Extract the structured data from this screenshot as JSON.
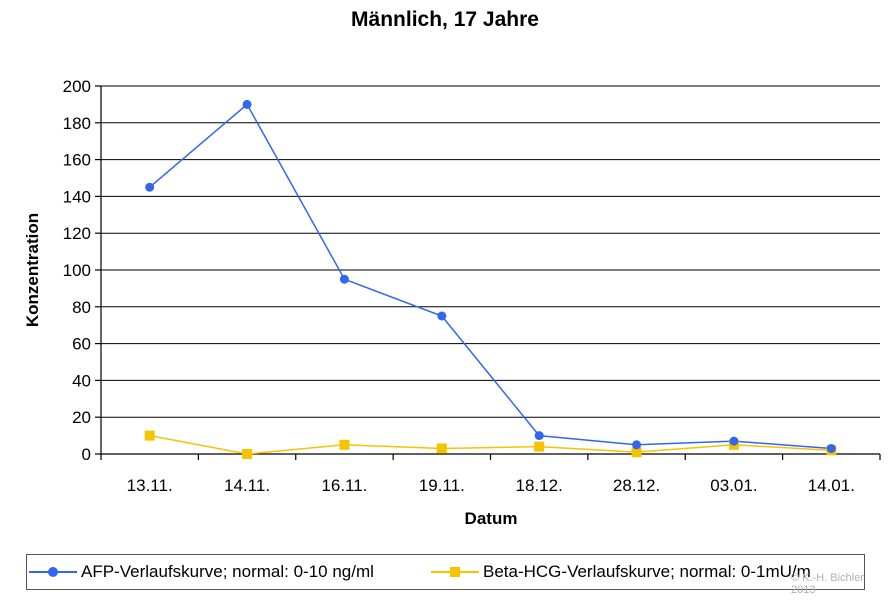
{
  "chart_data": {
    "type": "line",
    "title": "Männlich, 17 Jahre",
    "xlabel": "Datum",
    "ylabel": "Konzentration",
    "categories": [
      "13.11.",
      "14.11.",
      "16.11.",
      "19.11.",
      "18.12.",
      "28.12.",
      "03.01.",
      "14.01."
    ],
    "ylim": [
      0,
      200
    ],
    "yticks": [
      0,
      20,
      40,
      60,
      80,
      100,
      120,
      140,
      160,
      180,
      200
    ],
    "grid": true,
    "legend_position": "bottom",
    "series": [
      {
        "name": "AFP-Verlaufskurve; normal: 0-10 ng/ml",
        "marker": "circle",
        "color": "#3366ee",
        "values": [
          145,
          190,
          95,
          75,
          10,
          5,
          7,
          3
        ]
      },
      {
        "name": "Beta-HCG-Verlaufskurve; normal: 0-1mU/m",
        "marker": "square",
        "color": "#f5c400",
        "values": [
          10,
          0,
          5,
          3,
          4,
          1,
          5,
          2
        ]
      }
    ]
  },
  "watermark": {
    "line1": "© K.-H. Bichler",
    "line2": "2013"
  }
}
